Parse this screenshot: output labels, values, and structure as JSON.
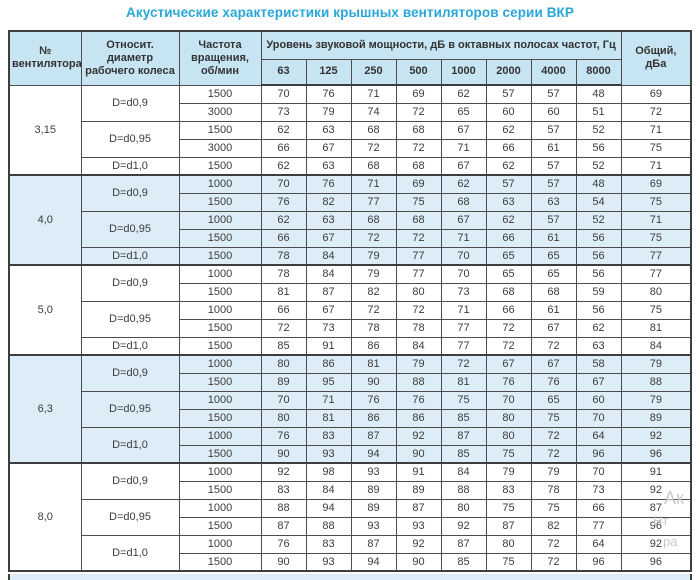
{
  "page": {
    "title": "Акустические характеристики крышных вентиляторов серии ВКР"
  },
  "colors": {
    "title": "#29a7d9",
    "header_bg": "#c7e4f2",
    "band_bg": "#dcedf7",
    "border": "#3e3e3e"
  },
  "table": {
    "headers": {
      "fan_no": "№ вентилятора",
      "diameter": "Относит. диаметр рабочего колеса",
      "speed": "Частота вращения, об/мин",
      "spl_group": "Уровень звуковой мощности, дБ в октавных полосах частот, Гц",
      "frequencies": [
        "63",
        "125",
        "250",
        "500",
        "1000",
        "2000",
        "4000",
        "8000"
      ],
      "total": "Общий, дБа"
    },
    "sections": [
      {
        "fan": "3,15",
        "shaded": false,
        "groups": [
          {
            "diameter": "D=d0,9",
            "rows": [
              {
                "speed": "1500",
                "values": [
                  70,
                  76,
                  71,
                  69,
                  62,
                  57,
                  57,
                  48
                ],
                "total": 69
              },
              {
                "speed": "3000",
                "values": [
                  73,
                  79,
                  74,
                  72,
                  65,
                  60,
                  60,
                  51
                ],
                "total": 72
              }
            ]
          },
          {
            "diameter": "D=d0,95",
            "rows": [
              {
                "speed": "1500",
                "values": [
                  62,
                  63,
                  68,
                  68,
                  67,
                  62,
                  57,
                  52
                ],
                "total": 71
              },
              {
                "speed": "3000",
                "values": [
                  66,
                  67,
                  72,
                  72,
                  71,
                  66,
                  61,
                  56
                ],
                "total": 75
              }
            ]
          },
          {
            "diameter": "D=d1,0",
            "rows": [
              {
                "speed": "1500",
                "values": [
                  62,
                  63,
                  68,
                  68,
                  67,
                  62,
                  57,
                  52
                ],
                "total": 71
              }
            ]
          }
        ]
      },
      {
        "fan": "4,0",
        "shaded": true,
        "groups": [
          {
            "diameter": "D=d0,9",
            "rows": [
              {
                "speed": "1000",
                "values": [
                  70,
                  76,
                  71,
                  69,
                  62,
                  57,
                  57,
                  48
                ],
                "total": 69
              },
              {
                "speed": "1500",
                "values": [
                  76,
                  82,
                  77,
                  75,
                  68,
                  63,
                  63,
                  54
                ],
                "total": 75
              }
            ]
          },
          {
            "diameter": "D=d0,95",
            "rows": [
              {
                "speed": "1000",
                "values": [
                  62,
                  63,
                  68,
                  68,
                  67,
                  62,
                  57,
                  52
                ],
                "total": 71
              },
              {
                "speed": "1500",
                "values": [
                  66,
                  67,
                  72,
                  72,
                  71,
                  66,
                  61,
                  56
                ],
                "total": 75
              }
            ]
          },
          {
            "diameter": "D=d1,0",
            "rows": [
              {
                "speed": "1500",
                "values": [
                  78,
                  84,
                  79,
                  77,
                  70,
                  65,
                  65,
                  56
                ],
                "total": 77
              }
            ]
          }
        ]
      },
      {
        "fan": "5,0",
        "shaded": false,
        "groups": [
          {
            "diameter": "D=d0,9",
            "rows": [
              {
                "speed": "1000",
                "values": [
                  78,
                  84,
                  79,
                  77,
                  70,
                  65,
                  65,
                  56
                ],
                "total": 77
              },
              {
                "speed": "1500",
                "values": [
                  81,
                  87,
                  82,
                  80,
                  73,
                  68,
                  68,
                  59
                ],
                "total": 80
              }
            ]
          },
          {
            "diameter": "D=d0,95",
            "rows": [
              {
                "speed": "1000",
                "values": [
                  66,
                  67,
                  72,
                  72,
                  71,
                  66,
                  61,
                  56
                ],
                "total": 75
              },
              {
                "speed": "1500",
                "values": [
                  72,
                  73,
                  78,
                  78,
                  77,
                  72,
                  67,
                  62
                ],
                "total": 81
              }
            ]
          },
          {
            "diameter": "D=d1,0",
            "rows": [
              {
                "speed": "1500",
                "values": [
                  85,
                  91,
                  86,
                  84,
                  77,
                  72,
                  72,
                  63
                ],
                "total": 84
              }
            ]
          }
        ]
      },
      {
        "fan": "6,3",
        "shaded": true,
        "groups": [
          {
            "diameter": "D=d0,9",
            "rows": [
              {
                "speed": "1000",
                "values": [
                  80,
                  86,
                  81,
                  79,
                  72,
                  67,
                  67,
                  58
                ],
                "total": 79
              },
              {
                "speed": "1500",
                "values": [
                  89,
                  95,
                  90,
                  88,
                  81,
                  76,
                  76,
                  67
                ],
                "total": 88
              }
            ]
          },
          {
            "diameter": "D=d0,95",
            "rows": [
              {
                "speed": "1000",
                "values": [
                  70,
                  71,
                  76,
                  76,
                  75,
                  70,
                  65,
                  60
                ],
                "total": 79
              },
              {
                "speed": "1500",
                "values": [
                  80,
                  81,
                  86,
                  86,
                  85,
                  80,
                  75,
                  70
                ],
                "total": 89
              }
            ]
          },
          {
            "diameter": "D=d1,0",
            "rows": [
              {
                "speed": "1000",
                "values": [
                  76,
                  83,
                  87,
                  92,
                  87,
                  80,
                  72,
                  64
                ],
                "total": 92
              },
              {
                "speed": "1500",
                "values": [
                  90,
                  93,
                  94,
                  90,
                  85,
                  75,
                  72,
                  96
                ],
                "total": 96
              }
            ]
          }
        ]
      },
      {
        "fan": "8,0",
        "shaded": false,
        "groups": [
          {
            "diameter": "D=d0,9",
            "rows": [
              {
                "speed": "1000",
                "values": [
                  92,
                  98,
                  93,
                  91,
                  84,
                  79,
                  79,
                  70
                ],
                "total": 91
              },
              {
                "speed": "1500",
                "values": [
                  83,
                  84,
                  89,
                  89,
                  88,
                  83,
                  78,
                  73
                ],
                "total": 92
              }
            ]
          },
          {
            "diameter": "D=d0,95",
            "rows": [
              {
                "speed": "1000",
                "values": [
                  88,
                  94,
                  89,
                  87,
                  80,
                  75,
                  75,
                  66
                ],
                "total": 87
              },
              {
                "speed": "1500",
                "values": [
                  87,
                  88,
                  93,
                  93,
                  92,
                  87,
                  82,
                  77
                ],
                "total": 96
              }
            ]
          },
          {
            "diameter": "D=d1,0",
            "rows": [
              {
                "speed": "1000",
                "values": [
                  76,
                  83,
                  87,
                  92,
                  87,
                  80,
                  72,
                  64
                ],
                "total": 92
              },
              {
                "speed": "1500",
                "values": [
                  90,
                  93,
                  94,
                  90,
                  85,
                  75,
                  72,
                  96
                ],
                "total": 96
              }
            ]
          }
        ]
      }
    ]
  },
  "watermark": {
    "fragments": [
      "Ак",
      "Нт",
      "ра"
    ]
  }
}
